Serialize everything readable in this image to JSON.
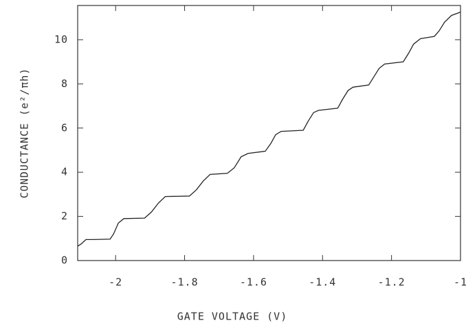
{
  "chart_data": {
    "type": "line",
    "xlabel": "GATE VOLTAGE   (V)",
    "ylabel": "CONDUCTANCE   (e²/πh)",
    "x": [
      -2.11,
      -2.1,
      -2.086,
      -2.066,
      -2.016,
      -2.006,
      -1.992,
      -1.976,
      -1.916,
      -1.896,
      -1.876,
      -1.856,
      -1.786,
      -1.766,
      -1.746,
      -1.726,
      -1.676,
      -1.656,
      -1.636,
      -1.616,
      -1.566,
      -1.55,
      -1.536,
      -1.52,
      -1.456,
      -1.442,
      -1.426,
      -1.412,
      -1.356,
      -1.342,
      -1.326,
      -1.312,
      -1.266,
      -1.252,
      -1.236,
      -1.22,
      -1.166,
      -1.15,
      -1.136,
      -1.116,
      -1.076,
      -1.062,
      -1.046,
      -1.026,
      -1.0
    ],
    "series": [
      {
        "color": "#222222",
        "values": [
          0.65,
          0.75,
          0.95,
          0.95,
          0.97,
          1.2,
          1.7,
          1.9,
          1.92,
          2.2,
          2.6,
          2.9,
          2.92,
          3.2,
          3.6,
          3.9,
          3.95,
          4.2,
          4.7,
          4.85,
          4.95,
          5.3,
          5.7,
          5.85,
          5.9,
          6.3,
          6.7,
          6.8,
          6.9,
          7.3,
          7.7,
          7.85,
          7.95,
          8.3,
          8.7,
          8.9,
          9.0,
          9.4,
          9.8,
          10.05,
          10.15,
          10.4,
          10.8,
          11.1,
          11.25
        ]
      }
    ],
    "xlim": [
      -2.11,
      -1.0
    ],
    "ylim": [
      0,
      11.55
    ],
    "xticks": [
      -2,
      {
        "value": -1.8,
        "label": "-1.8"
      },
      {
        "value": -1.6,
        "label": "-1.6"
      },
      {
        "value": -1.4,
        "label": "-1.4"
      },
      {
        "value": -1.2,
        "label": "-1.2"
      },
      -1
    ],
    "yticks": [
      0,
      2,
      4,
      6,
      8,
      10
    ]
  }
}
